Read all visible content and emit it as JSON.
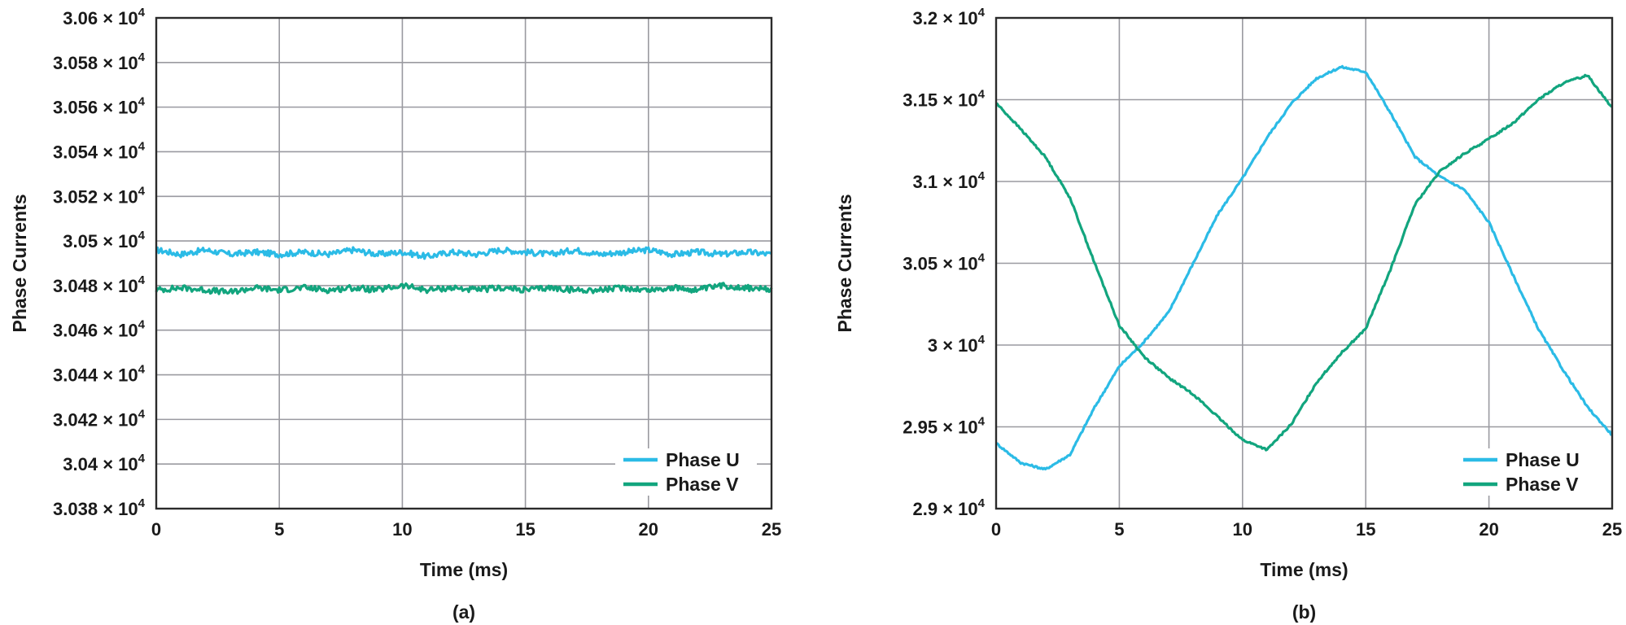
{
  "chart_data": [
    {
      "type": "line",
      "caption": "(a)",
      "xlabel": "Time (ms)",
      "ylabel": "Phase Currents",
      "xlim": [
        0,
        25
      ],
      "ylim": [
        30380,
        30600
      ],
      "x_ticks": [
        0,
        5,
        10,
        15,
        20,
        25
      ],
      "x_tick_labels": [
        "0",
        "5",
        "10",
        "15",
        "20",
        "25"
      ],
      "y_ticks": [
        30380,
        30400,
        30420,
        30440,
        30460,
        30480,
        30500,
        30520,
        30540,
        30560,
        30580,
        30600
      ],
      "y_tick_labels": [
        {
          "mantissa": "3.038",
          "exponent": "4"
        },
        {
          "mantissa": "3.04",
          "exponent": "4"
        },
        {
          "mantissa": "3.042",
          "exponent": "4"
        },
        {
          "mantissa": "3.044",
          "exponent": "4"
        },
        {
          "mantissa": "3.046",
          "exponent": "4"
        },
        {
          "mantissa": "3.048",
          "exponent": "4"
        },
        {
          "mantissa": "3.05",
          "exponent": "4"
        },
        {
          "mantissa": "3.052",
          "exponent": "4"
        },
        {
          "mantissa": "3.054",
          "exponent": "4"
        },
        {
          "mantissa": "3.056",
          "exponent": "4"
        },
        {
          "mantissa": "3.058",
          "exponent": "4"
        },
        {
          "mantissa": "3.06",
          "exponent": "4"
        }
      ],
      "grid": true,
      "legend_position": "bottom-right",
      "x": [
        0,
        1,
        2,
        3,
        4,
        5,
        6,
        7,
        8,
        9,
        10,
        11,
        12,
        13,
        14,
        15,
        16,
        17,
        18,
        19,
        20,
        21,
        22,
        23,
        24,
        25
      ],
      "series": [
        {
          "name": "Phase U",
          "color": "#2bbbe6",
          "values": [
            30496,
            30494,
            30496,
            30494,
            30495,
            30494,
            30495,
            30494,
            30496,
            30494,
            30495,
            30493,
            30495,
            30494,
            30496,
            30495,
            30494,
            30496,
            30494,
            30495,
            30496,
            30494,
            30495,
            30494,
            30495,
            30494
          ]
        },
        {
          "name": "Phase V",
          "color": "#12a57e",
          "values": [
            30478,
            30479,
            30478,
            30477,
            30479,
            30478,
            30479,
            30478,
            30479,
            30478,
            30480,
            30478,
            30479,
            30478,
            30479,
            30478,
            30479,
            30478,
            30478,
            30479,
            30478,
            30479,
            30478,
            30480,
            30479,
            30478
          ]
        }
      ]
    },
    {
      "type": "line",
      "caption": "(b)",
      "xlabel": "Time (ms)",
      "ylabel": "Phase Currents",
      "xlim": [
        0,
        25
      ],
      "ylim": [
        29000,
        32000
      ],
      "x_ticks": [
        0,
        5,
        10,
        15,
        20,
        25
      ],
      "x_tick_labels": [
        "0",
        "5",
        "10",
        "15",
        "20",
        "25"
      ],
      "y_ticks": [
        29000,
        29500,
        30000,
        30500,
        31000,
        31500,
        32000
      ],
      "y_tick_labels": [
        {
          "mantissa": "2.9",
          "exponent": "4"
        },
        {
          "mantissa": "2.95",
          "exponent": "4"
        },
        {
          "mantissa": "3",
          "exponent": "4"
        },
        {
          "mantissa": "3.05",
          "exponent": "4"
        },
        {
          "mantissa": "3.1",
          "exponent": "4"
        },
        {
          "mantissa": "3.15",
          "exponent": "4"
        },
        {
          "mantissa": "3.2",
          "exponent": "4"
        }
      ],
      "grid": true,
      "legend_position": "bottom-right",
      "x": [
        0,
        1,
        2,
        3,
        4,
        5,
        6,
        7,
        8,
        9,
        10,
        11,
        12,
        13,
        14,
        15,
        16,
        17,
        18,
        19,
        20,
        21,
        22,
        23,
        24,
        25
      ],
      "series": [
        {
          "name": "Phase U",
          "color": "#2bbbe6",
          "values": [
            29400,
            29280,
            29240,
            29330,
            29620,
            29870,
            30020,
            30200,
            30500,
            30800,
            31020,
            31270,
            31480,
            31630,
            31700,
            31670,
            31420,
            31150,
            31030,
            30950,
            30750,
            30420,
            30100,
            29850,
            29620,
            29450
          ]
        },
        {
          "name": "Phase V",
          "color": "#12a57e",
          "values": [
            31480,
            31320,
            31150,
            30900,
            30500,
            30120,
            29930,
            29800,
            29700,
            29560,
            29420,
            29360,
            29520,
            29770,
            29950,
            30100,
            30460,
            30860,
            31060,
            31170,
            31260,
            31360,
            31500,
            31600,
            31650,
            31450
          ]
        }
      ]
    }
  ]
}
